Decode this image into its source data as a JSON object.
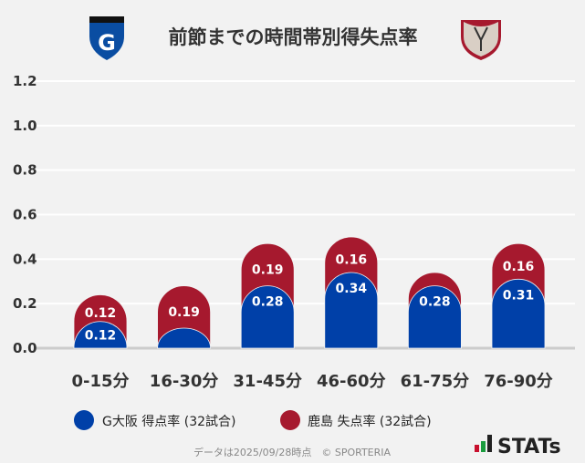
{
  "chart_data": {
    "type": "bar",
    "stacked": true,
    "title": "前節までの時間帯別得失点率",
    "categories": [
      "0-15分",
      "16-30分",
      "31-45分",
      "46-60分",
      "61-75分",
      "76-90分"
    ],
    "series": [
      {
        "name": "G大阪 得点率 (32試合)",
        "color": "#0040a8",
        "values": [
          0.12,
          0.09,
          0.28,
          0.34,
          0.28,
          0.31
        ],
        "labels": [
          "0.12",
          "",
          "0.28",
          "0.34",
          "0.28",
          "0.31"
        ]
      },
      {
        "name": "鹿島 失点率 (32試合)",
        "color": "#a6192e",
        "values": [
          0.12,
          0.19,
          0.19,
          0.16,
          0.06,
          0.16
        ],
        "labels": [
          "0.12",
          "0.19",
          "0.19",
          "0.16",
          "",
          "0.16"
        ]
      }
    ],
    "yticks": [
      "0.0",
      "0.2",
      "0.4",
      "0.6",
      "0.8",
      "1.0",
      "1.2"
    ],
    "ylim": [
      0,
      1.2
    ],
    "grid": true,
    "legend": "bottom"
  },
  "footer": {
    "note": "データは2025/09/28時点　© SPORTERIA",
    "brand": "STATs"
  },
  "logos": {
    "left": "gamba-osaka-emblem",
    "right": "kashima-antlers-emblem"
  }
}
